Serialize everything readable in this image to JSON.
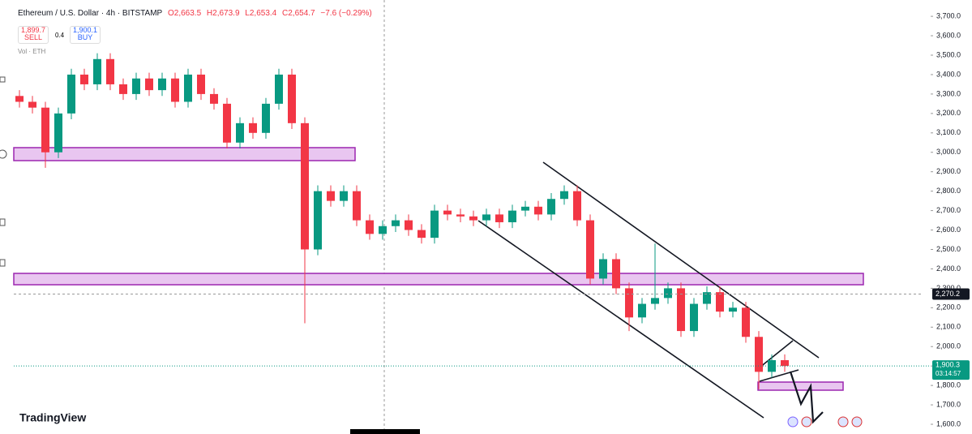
{
  "header": {
    "symbol": "Ethereum / U.S. Dollar · 4h · BITSTAMP",
    "open": "O2,663.5",
    "high": "H2,673.9",
    "low": "L2,653.4",
    "close": "C2,654.7",
    "change": "−7.6 (−0.29%)",
    "sell_price": "1,899.7",
    "sell": "SELL",
    "spread": "0.4",
    "buy_price": "1,900.1",
    "buy": "BUY",
    "volume": "Vol · ETH",
    "logo": "TradingView"
  },
  "chart_data": {
    "type": "candlestick",
    "open": [
      3290,
      3260,
      3230,
      3000,
      3200,
      3400,
      3350,
      3480,
      3350,
      3300,
      3380,
      3320,
      3380,
      3260,
      3400,
      3300,
      3250,
      3050,
      3150,
      3100,
      3250,
      3400,
      3150,
      2500,
      2800,
      2750,
      2800,
      2650,
      2580,
      2620,
      2650,
      2600,
      2560,
      2700,
      2680,
      2670,
      2650,
      2680,
      2640,
      2700,
      2720,
      2680,
      2760,
      2800,
      2650,
      2350,
      2450,
      2300,
      2150,
      2220,
      2250,
      2300,
      2080,
      2220,
      2280,
      2180,
      2200,
      2050,
      1870,
      1930
    ],
    "high": [
      3320,
      3290,
      3260,
      3230,
      3430,
      3430,
      3510,
      3510,
      3380,
      3410,
      3410,
      3410,
      3410,
      3430,
      3430,
      3330,
      3280,
      3180,
      3180,
      3280,
      3430,
      3430,
      3180,
      2830,
      2830,
      2830,
      2830,
      2680,
      2650,
      2680,
      2680,
      2630,
      2730,
      2730,
      2710,
      2700,
      2710,
      2710,
      2730,
      2750,
      2750,
      2790,
      2830,
      2830,
      2680,
      2480,
      2480,
      2330,
      2250,
      2530,
      2330,
      2330,
      2250,
      2310,
      2310,
      2230,
      2230,
      2080,
      1960,
      1960
    ],
    "low": [
      3230,
      3200,
      2920,
      2970,
      3170,
      3320,
      3320,
      3320,
      3270,
      3270,
      3290,
      3290,
      3230,
      3230,
      3270,
      3220,
      3020,
      3020,
      3070,
      3070,
      3220,
      3120,
      2120,
      2470,
      2720,
      2720,
      2620,
      2550,
      2550,
      2590,
      2570,
      2530,
      2530,
      2650,
      2640,
      2620,
      2620,
      2610,
      2610,
      2670,
      2650,
      2650,
      2730,
      2620,
      2320,
      2320,
      2270,
      2080,
      2120,
      2190,
      2220,
      2050,
      2050,
      2190,
      2150,
      2150,
      2020,
      1780,
      1840,
      1870
    ],
    "close": [
      3260,
      3230,
      3000,
      3200,
      3400,
      3350,
      3480,
      3350,
      3300,
      3380,
      3320,
      3380,
      3260,
      3400,
      3300,
      3250,
      3050,
      3150,
      3100,
      3250,
      3400,
      3150,
      2500,
      2800,
      2750,
      2800,
      2650,
      2580,
      2620,
      2650,
      2600,
      2560,
      2700,
      2680,
      2670,
      2650,
      2680,
      2640,
      2700,
      2720,
      2680,
      2760,
      2800,
      2650,
      2350,
      2450,
      2300,
      2150,
      2220,
      2250,
      2300,
      2080,
      2220,
      2280,
      2180,
      2200,
      2050,
      1870,
      1930,
      1900
    ],
    "up_color": "#089981",
    "down_color": "#f23645",
    "ylim": [
      1550,
      3784
    ],
    "yticks": [
      {
        "value": 3700,
        "label": "3,700.0"
      },
      {
        "value": 3600,
        "label": "3,600.0"
      },
      {
        "value": 3500,
        "label": "3,500.0"
      },
      {
        "value": 3400,
        "label": "3,400.0"
      },
      {
        "value": 3300,
        "label": "3,300.0"
      },
      {
        "value": 3200,
        "label": "3,200.0"
      },
      {
        "value": 3100,
        "label": "3,100.0"
      },
      {
        "value": 3000,
        "label": "3,000.0"
      },
      {
        "value": 2900,
        "label": "2,900.0"
      },
      {
        "value": 2800,
        "label": "2,800.0"
      },
      {
        "value": 2700,
        "label": "2,700.0"
      },
      {
        "value": 2600,
        "label": "2,600.0"
      },
      {
        "value": 2500,
        "label": "2,500.0"
      },
      {
        "value": 2400,
        "label": "2,400.0"
      },
      {
        "value": 2300,
        "label": "2,300.0"
      },
      {
        "value": 2200,
        "label": "2,200.0"
      },
      {
        "value": 2100,
        "label": "2,100.0"
      },
      {
        "value": 2000,
        "label": "2,000.0"
      },
      {
        "value": 1900,
        "label": "1,900.0"
      },
      {
        "value": 1800,
        "label": "1,800.0"
      },
      {
        "value": 1700,
        "label": "1,700.0"
      },
      {
        "value": 1600,
        "label": "1,600.0"
      }
    ],
    "crosshair_price": {
      "value": 2270.2,
      "label": "2,270.2"
    },
    "last_price": {
      "value": 1900.3,
      "label": "1,900.3"
    },
    "countdown": "03:14:57"
  }
}
